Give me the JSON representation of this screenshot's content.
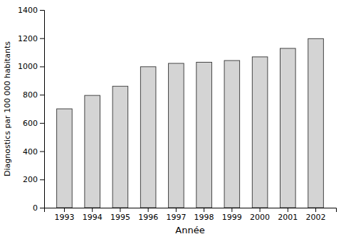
{
  "chart_data": {
    "type": "bar",
    "categories": [
      "1993",
      "1994",
      "1995",
      "1996",
      "1997",
      "1998",
      "1999",
      "2000",
      "2001",
      "2002"
    ],
    "values": [
      700,
      795,
      860,
      998,
      1022,
      1030,
      1042,
      1068,
      1128,
      1197
    ],
    "color": "#d4d4d4",
    "xlabel": "Année",
    "ylabel": "Diagnostics par 100 000 habitants",
    "ylim": [
      0,
      1400
    ],
    "yticks": [
      0,
      200,
      400,
      600,
      800,
      1000,
      1200,
      1400
    ],
    "grid": false
  }
}
